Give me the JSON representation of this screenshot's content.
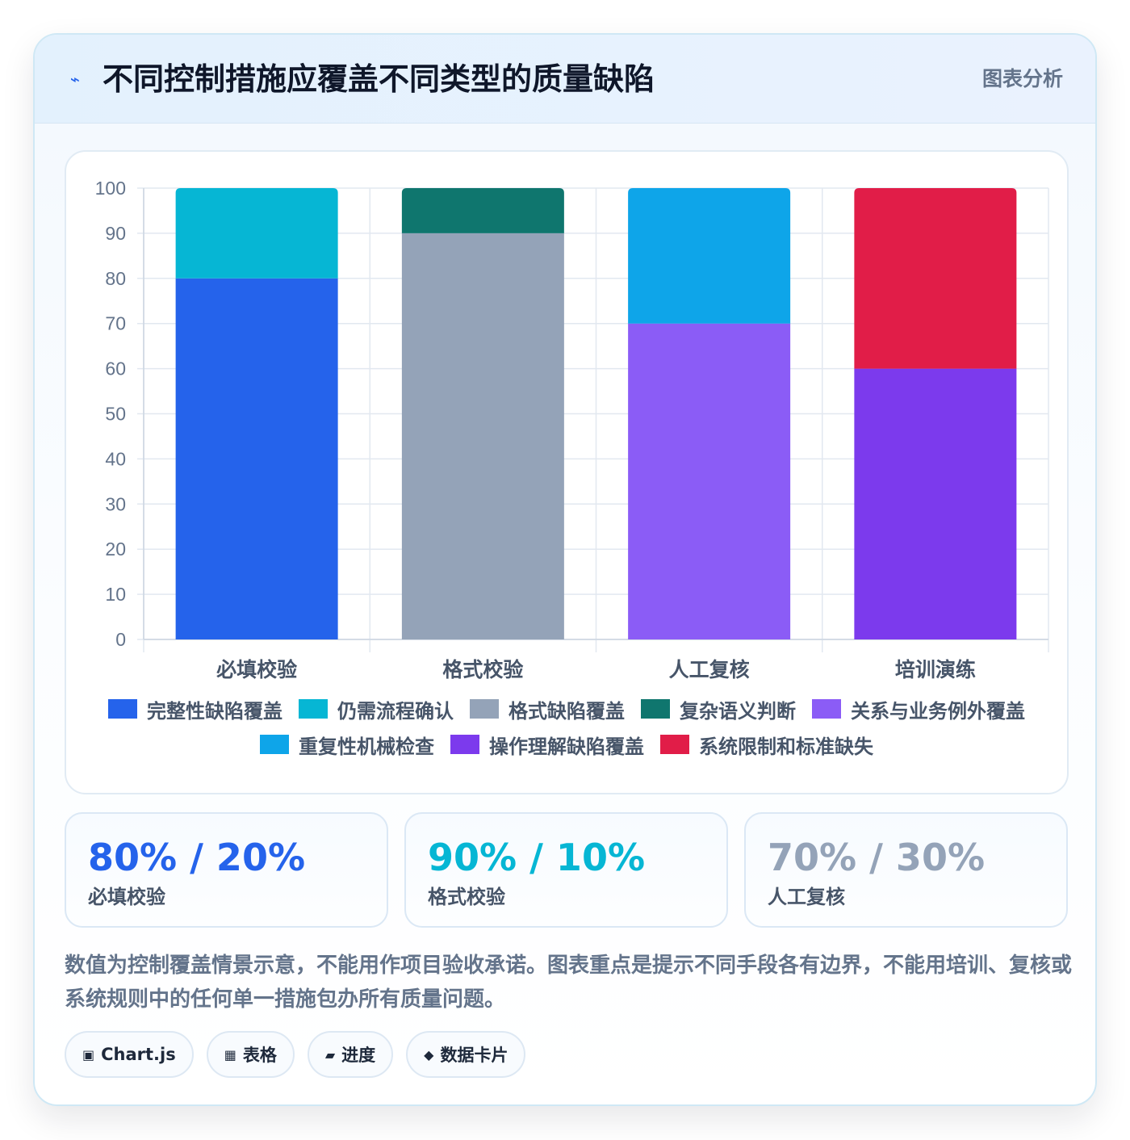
{
  "header": {
    "icon": "lightning-icon",
    "title": "不同控制措施应覆盖不同类型的质量缺陷",
    "tag": "图表分析"
  },
  "colors": {
    "完整性缺陷覆盖": "#2563eb",
    "仍需流程确认": "#06b6d4",
    "格式缺陷覆盖": "#94a3b8",
    "复杂语义判断": "#0f766e",
    "关系与业务例外覆盖": "#8b5cf6",
    "重复性机械检查": "#0ea5e9",
    "操作理解缺陷覆盖": "#7c3aed",
    "系统限制和标准缺失": "#e11d48"
  },
  "chart_data": {
    "type": "bar",
    "stacked": true,
    "categories": [
      "必填校验",
      "格式校验",
      "人工复核",
      "培训演练"
    ],
    "series": [
      {
        "name": "完整性缺陷覆盖",
        "values": [
          80,
          0,
          0,
          0
        ],
        "color": "#2563eb"
      },
      {
        "name": "仍需流程确认",
        "values": [
          20,
          0,
          0,
          0
        ],
        "color": "#06b6d4"
      },
      {
        "name": "格式缺陷覆盖",
        "values": [
          0,
          90,
          0,
          0
        ],
        "color": "#94a3b8"
      },
      {
        "name": "复杂语义判断",
        "values": [
          0,
          10,
          0,
          0
        ],
        "color": "#0f766e"
      },
      {
        "name": "关系与业务例外覆盖",
        "values": [
          0,
          0,
          70,
          0
        ],
        "color": "#8b5cf6"
      },
      {
        "name": "重复性机械检查",
        "values": [
          0,
          0,
          30,
          0
        ],
        "color": "#0ea5e9"
      },
      {
        "name": "操作理解缺陷覆盖",
        "values": [
          0,
          0,
          0,
          60
        ],
        "color": "#7c3aed"
      },
      {
        "name": "系统限制和标准缺失",
        "values": [
          0,
          0,
          0,
          40
        ],
        "color": "#e11d48"
      }
    ],
    "ylim": [
      0,
      100
    ],
    "yticks": [
      0,
      10,
      20,
      30,
      40,
      50,
      60,
      70,
      80,
      90,
      100
    ],
    "grid": true,
    "legend": "bottom",
    "xlabel": "",
    "ylabel": ""
  },
  "legend_rows": [
    [
      "完整性缺陷覆盖",
      "仍需流程确认",
      "格式缺陷覆盖",
      "复杂语义判断",
      "关系与业务例外覆盖"
    ],
    [
      "重复性机械检查",
      "操作理解缺陷覆盖",
      "系统限制和标准缺失"
    ]
  ],
  "stats": [
    {
      "value": "80% / 20%",
      "label": "必填校验",
      "color": "#2563eb"
    },
    {
      "value": "90% / 10%",
      "label": "格式校验",
      "color": "#06b6d4"
    },
    {
      "value": "70% / 30%",
      "label": "人工复核",
      "color": "#94a3b8"
    }
  ],
  "note": "数值为控制覆盖情景示意，不能用作项目验收承诺。图表重点是提示不同手段各有边界，不能用培训、复核或系统规则中的任何单一措施包办所有质量问题。",
  "tags": [
    {
      "icon": "▣",
      "icon_name": "chart-icon",
      "label": "Chart.js"
    },
    {
      "icon": "▦",
      "icon_name": "table-icon",
      "label": "表格"
    },
    {
      "icon": "▰",
      "icon_name": "progress-icon",
      "label": "进度"
    },
    {
      "icon": "◆",
      "icon_name": "data-card-icon",
      "label": "数据卡片"
    }
  ]
}
